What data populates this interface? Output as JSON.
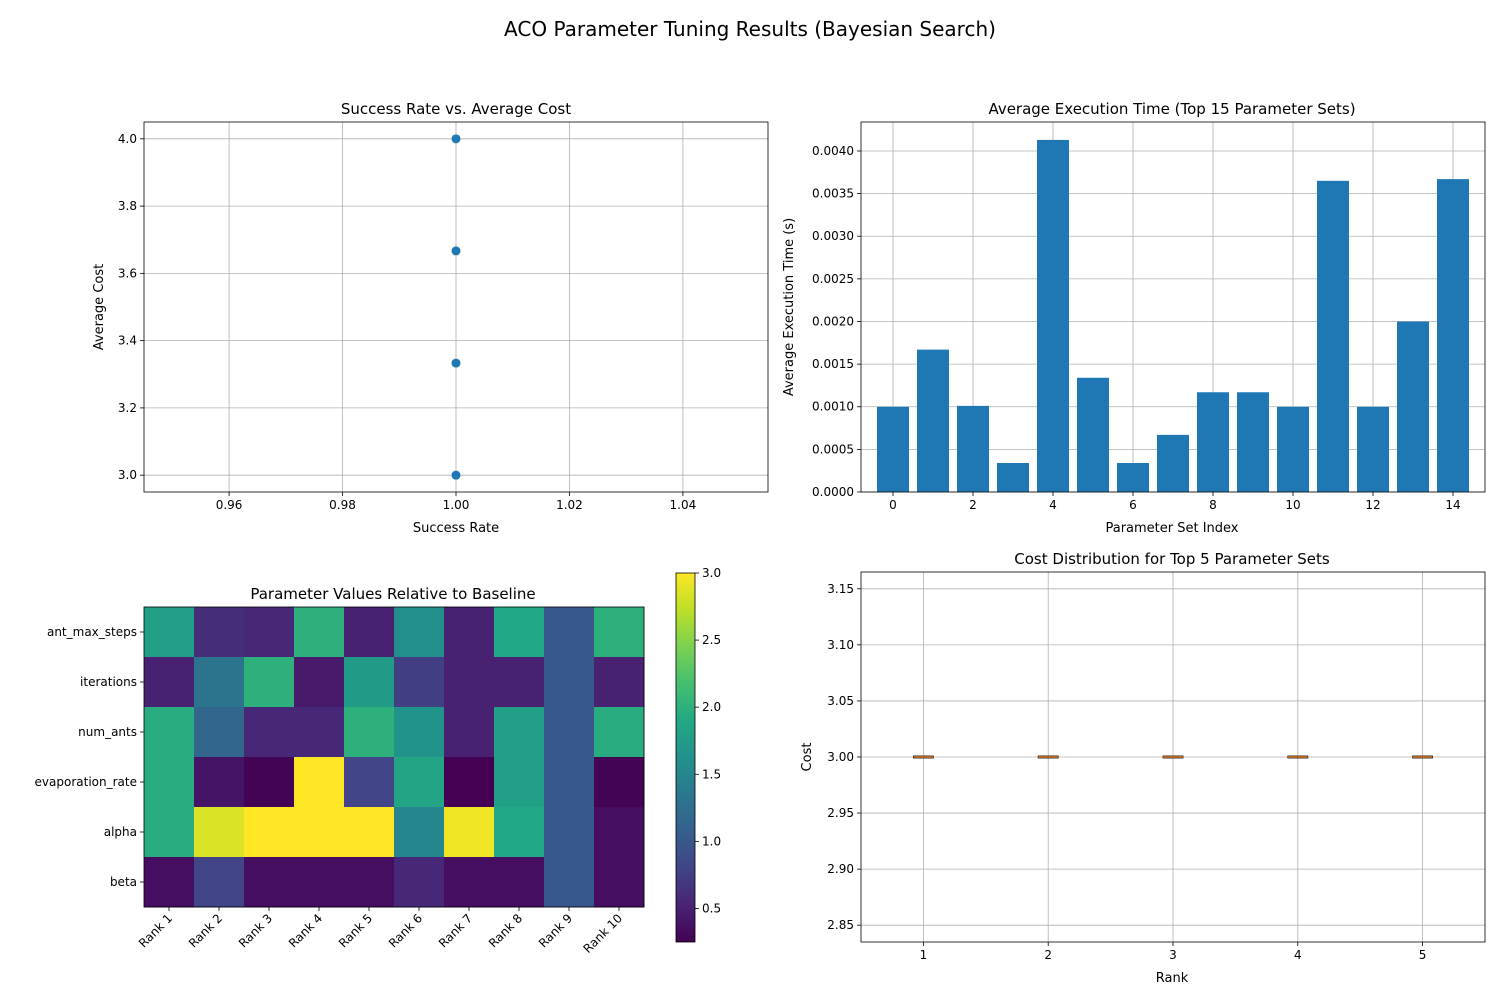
{
  "figure": {
    "title": "ACO Parameter Tuning Results (Bayesian Search)"
  },
  "chart_data": [
    {
      "type": "scatter",
      "title": "Success Rate vs. Average Cost",
      "xlabel": "Success Rate",
      "ylabel": "Average Cost",
      "xlim": [
        0.945,
        1.055
      ],
      "ylim": [
        2.95,
        4.05
      ],
      "xticks": [
        "0.96",
        "0.98",
        "1.00",
        "1.02",
        "1.04"
      ],
      "yticks": [
        "3.0",
        "3.2",
        "3.4",
        "3.6",
        "3.8",
        "4.0"
      ],
      "grid": true,
      "color": "#1f77b4",
      "points": [
        {
          "x": 1.0,
          "y": 4.0
        },
        {
          "x": 1.0,
          "y": 3.6667
        },
        {
          "x": 1.0,
          "y": 3.3333
        },
        {
          "x": 1.0,
          "y": 3.0
        }
      ]
    },
    {
      "type": "bar",
      "title": "Average Execution Time (Top 15 Parameter Sets)",
      "xlabel": "Parameter Set Index",
      "ylabel": "Average Execution Time (s)",
      "ylim": [
        0,
        0.00434
      ],
      "xticks": [
        "0",
        "2",
        "4",
        "6",
        "8",
        "10",
        "12",
        "14"
      ],
      "yticks": [
        "0.0000",
        "0.0005",
        "0.0010",
        "0.0015",
        "0.0020",
        "0.0025",
        "0.0030",
        "0.0035",
        "0.0040"
      ],
      "grid": true,
      "color": "#1f77b4",
      "categories": [
        0,
        1,
        2,
        3,
        4,
        5,
        6,
        7,
        8,
        9,
        10,
        11,
        12,
        13,
        14
      ],
      "values": [
        0.001,
        0.00167,
        0.00101,
        0.00034,
        0.00413,
        0.00134,
        0.00034,
        0.00067,
        0.00117,
        0.00117,
        0.001,
        0.00365,
        0.001,
        0.002,
        0.00367
      ]
    },
    {
      "type": "heatmap",
      "title": "Parameter Values Relative to Baseline",
      "rows": [
        "ant_max_steps",
        "iterations",
        "num_ants",
        "evaporation_rate",
        "alpha",
        "beta"
      ],
      "columns": [
        "Rank 1",
        "Rank 2",
        "Rank 3",
        "Rank 4",
        "Rank 5",
        "Rank 6",
        "Rank 7",
        "Rank 8",
        "Rank 9",
        "Rank 10"
      ],
      "values": [
        [
          1.8,
          0.6,
          0.55,
          2.0,
          0.5,
          1.6,
          0.5,
          1.9,
          1.0,
          2.0
        ],
        [
          0.5,
          1.3,
          2.0,
          0.45,
          1.75,
          0.75,
          0.5,
          0.5,
          1.0,
          0.5
        ],
        [
          1.95,
          1.15,
          0.55,
          0.55,
          2.0,
          1.65,
          0.5,
          1.8,
          1.0,
          1.95
        ],
        [
          1.95,
          0.4,
          0.27,
          3.0,
          0.8,
          1.85,
          0.25,
          1.8,
          1.0,
          0.27
        ],
        [
          1.95,
          2.85,
          3.0,
          3.0,
          3.0,
          1.5,
          2.95,
          1.9,
          1.0,
          0.35
        ],
        [
          0.35,
          0.8,
          0.35,
          0.35,
          0.35,
          0.55,
          0.35,
          0.35,
          1.0,
          0.35
        ]
      ],
      "vmin": 0.25,
      "vmax": 3.0,
      "colorbar_ticks": [
        "0.5",
        "1.0",
        "1.5",
        "2.0",
        "2.5",
        "3.0"
      ],
      "colormap": "viridis"
    },
    {
      "type": "box",
      "title": "Cost Distribution for Top 5 Parameter Sets",
      "xlabel": "Rank",
      "ylabel": "Cost",
      "ylim": [
        2.835,
        3.165
      ],
      "xticks": [
        "1",
        "2",
        "3",
        "4",
        "5"
      ],
      "yticks": [
        "2.85",
        "2.90",
        "2.95",
        "3.00",
        "3.05",
        "3.10",
        "3.15"
      ],
      "grid": true,
      "median_color": "#ff7f0e",
      "boxes": [
        {
          "rank": 1,
          "min": 3.0,
          "q1": 3.0,
          "median": 3.0,
          "q3": 3.0,
          "max": 3.0
        },
        {
          "rank": 2,
          "min": 3.0,
          "q1": 3.0,
          "median": 3.0,
          "q3": 3.0,
          "max": 3.0
        },
        {
          "rank": 3,
          "min": 3.0,
          "q1": 3.0,
          "median": 3.0,
          "q3": 3.0,
          "max": 3.0
        },
        {
          "rank": 4,
          "min": 3.0,
          "q1": 3.0,
          "median": 3.0,
          "q3": 3.0,
          "max": 3.0
        },
        {
          "rank": 5,
          "min": 3.0,
          "q1": 3.0,
          "median": 3.0,
          "q3": 3.0,
          "max": 3.0
        }
      ]
    }
  ]
}
